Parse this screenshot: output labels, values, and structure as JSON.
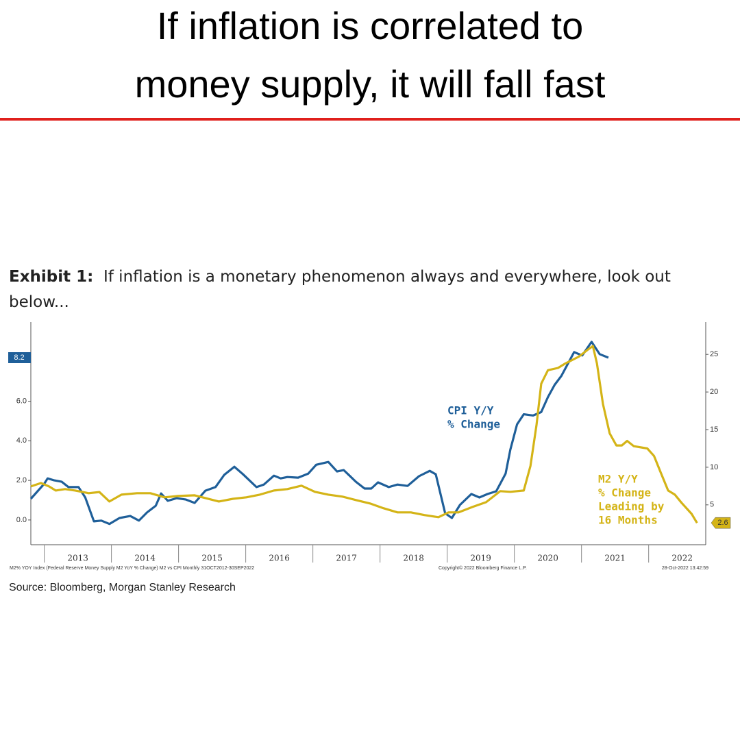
{
  "header": {
    "title_lines": [
      "If inflation is correlated to",
      "money supply, it will fall fast"
    ]
  },
  "caption": {
    "label": "Exhibit 1:",
    "text": "If inflation is a monetary phenomenon always and everywhere, look out below..."
  },
  "chart_data": {
    "type": "line",
    "xlim": [
      2012.8,
      2022.85
    ],
    "xticks": [
      2013,
      2014,
      2015,
      2016,
      2017,
      2018,
      2019,
      2020,
      2021,
      2022
    ],
    "ylim": [
      -1.25,
      10
    ],
    "yticks": [
      {
        "value": 0,
        "label": "0.0"
      },
      {
        "value": 2,
        "label": "2.0"
      },
      {
        "value": 4,
        "label": "4.0"
      },
      {
        "value": 6,
        "label": "6.0"
      }
    ],
    "y2lim": [
      -0.3,
      29.3
    ],
    "y2ticks": [
      5,
      10,
      15,
      20,
      25
    ],
    "series": [
      {
        "name": "CPI Y/Y % Change",
        "color": "#1f5f99",
        "axis": "y",
        "end_label": "8.2",
        "x": [
          2012.8,
          2013.0,
          2013.05,
          2013.15,
          2013.26,
          2013.36,
          2013.51,
          2013.61,
          2013.74,
          2013.85,
          2013.97,
          2014.12,
          2014.28,
          2014.41,
          2014.53,
          2014.66,
          2014.74,
          2014.84,
          2014.97,
          2015.11,
          2015.24,
          2015.4,
          2015.55,
          2015.68,
          2015.83,
          2015.96,
          2016.16,
          2016.27,
          2016.42,
          2016.52,
          2016.62,
          2016.78,
          2016.93,
          2017.05,
          2017.23,
          2017.36,
          2017.46,
          2017.64,
          2017.77,
          2017.87,
          2017.97,
          2018.13,
          2018.26,
          2018.41,
          2018.58,
          2018.74,
          2018.83,
          2018.97,
          2019.07,
          2019.19,
          2019.36,
          2019.48,
          2019.6,
          2019.73,
          2019.87,
          2019.94,
          2020.04,
          2020.14,
          2020.28,
          2020.4,
          2020.5,
          2020.6,
          2020.7,
          2020.89,
          2021.01,
          2021.15,
          2021.27,
          2021.4
        ],
        "values": [
          1.07,
          1.83,
          2.1,
          2.0,
          1.93,
          1.66,
          1.66,
          1.14,
          -0.07,
          -0.03,
          -0.2,
          0.1,
          0.2,
          -0.03,
          0.38,
          0.72,
          1.34,
          0.97,
          1.1,
          1.03,
          0.86,
          1.48,
          1.66,
          2.28,
          2.69,
          2.31,
          1.66,
          1.79,
          2.24,
          2.1,
          2.17,
          2.14,
          2.34,
          2.79,
          2.93,
          2.45,
          2.52,
          1.93,
          1.59,
          1.59,
          1.9,
          1.66,
          1.79,
          1.72,
          2.21,
          2.48,
          2.31,
          0.34,
          0.1,
          0.76,
          1.31,
          1.14,
          1.31,
          1.45,
          2.34,
          3.55,
          4.83,
          5.34,
          5.28,
          5.45,
          6.21,
          6.83,
          7.28,
          8.48,
          8.31,
          9.0,
          8.38,
          8.2
        ]
      },
      {
        "name": "M2 Y/Y % Change Leading by 16 Months",
        "color": "#d4b417",
        "axis": "y2",
        "end_label": "2.6",
        "x": [
          2012.8,
          2012.95,
          2013.07,
          2013.17,
          2013.31,
          2013.46,
          2013.66,
          2013.82,
          2013.97,
          2014.15,
          2014.38,
          2014.58,
          2014.79,
          2014.99,
          2015.24,
          2015.4,
          2015.6,
          2015.81,
          2016.01,
          2016.21,
          2016.42,
          2016.62,
          2016.83,
          2017.03,
          2017.23,
          2017.44,
          2017.64,
          2017.85,
          2018.05,
          2018.26,
          2018.46,
          2018.66,
          2018.87,
          2019.02,
          2019.17,
          2019.38,
          2019.58,
          2019.79,
          2019.94,
          2020.14,
          2020.24,
          2020.33,
          2020.4,
          2020.5,
          2020.65,
          2020.76,
          2020.96,
          2021.09,
          2021.17,
          2021.23,
          2021.32,
          2021.42,
          2021.52,
          2021.6,
          2021.68,
          2021.78,
          2021.98,
          2022.08,
          2022.18,
          2022.29,
          2022.39,
          2022.49,
          2022.64,
          2022.72
        ],
        "values": [
          7.45,
          7.9,
          7.45,
          6.9,
          7.1,
          6.9,
          6.55,
          6.7,
          5.45,
          6.36,
          6.55,
          6.55,
          6.0,
          6.18,
          6.27,
          5.9,
          5.45,
          5.8,
          6.0,
          6.36,
          6.9,
          7.1,
          7.55,
          6.73,
          6.36,
          6.09,
          5.64,
          5.18,
          4.55,
          4.0,
          4.0,
          3.64,
          3.36,
          4.0,
          4.0,
          4.73,
          5.36,
          6.82,
          6.73,
          6.9,
          10.18,
          15.6,
          21.1,
          22.9,
          23.2,
          23.8,
          24.7,
          25.6,
          26.1,
          23.8,
          18.4,
          14.5,
          12.9,
          12.9,
          13.5,
          12.8,
          12.5,
          11.5,
          9.3,
          6.9,
          6.36,
          5.27,
          3.8,
          2.6
        ]
      }
    ],
    "annotations": [
      {
        "lines": [
          "CPI Y/Y",
          "% Change"
        ],
        "color": "#1f5f99"
      },
      {
        "lines": [
          "M2 Y/Y",
          "% Change",
          "Leading by",
          "16 Months"
        ],
        "color": "#d4b417"
      }
    ],
    "footnotes": [
      "M2% YOY Index (Federal Reserve Money Supply M2 YoY % Change) M2 vs CPI  Monthly 31OCT2012-30SEP2022",
      "Copyright© 2022 Bloomberg Finance L.P.",
      "28-Oct-2022 13:42:59"
    ]
  },
  "source": "Source: Bloomberg, Morgan Stanley Research"
}
